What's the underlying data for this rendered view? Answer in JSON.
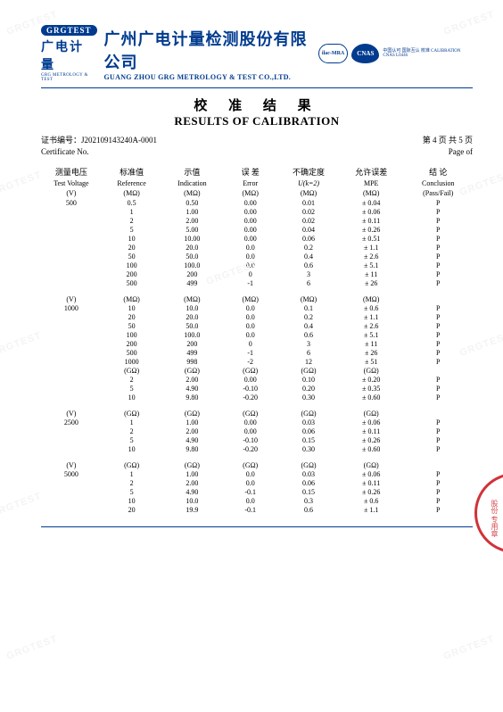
{
  "header": {
    "logo_badge": "GRGTEST",
    "logo_cn": "广电计量",
    "logo_sub": "GRG METROLOGY & TEST",
    "company_cn": "广州广电计量检测股份有限公司",
    "company_en": "GUANG ZHOU GRG METROLOGY & TEST CO.,LTD.",
    "ilac": "ilac-MRA",
    "cnas": "CNAS",
    "cnas_txt": "中国认可\n国际互认\n校准\nCALIBRATION\nCNAS L0446"
  },
  "title": {
    "cn": "校 准 结 果",
    "en": "RESULTS OF CALIBRATION"
  },
  "cert": {
    "label_cn": "证书编号：",
    "no": "J202109143240A-0001",
    "label_en": "Certificate No.",
    "page_cn": "第 4 页 共 5 页",
    "page_en": "Page    of"
  },
  "cols": {
    "c1_cn": "测量电压",
    "c1_en": "Test Voltage",
    "c1_u": "(V)",
    "c2_cn": "标准值",
    "c2_en": "Reference",
    "c2_u": "(MΩ)",
    "c3_cn": "示值",
    "c3_en": "Indication",
    "c3_u": "(MΩ)",
    "c4_cn": "误 差",
    "c4_en": "Error",
    "c4_u": "(MΩ)",
    "c5_cn": "不确定度",
    "c5_en": "U(k=2)",
    "c5_u": "(MΩ)",
    "c6_cn": "允许误差",
    "c6_en": "MPE",
    "c6_u": "(MΩ)",
    "c7_cn": "结  论",
    "c7_en": "Conclusion",
    "c7_u": "(Pass/Fail)"
  },
  "sec1": {
    "v": "500",
    "rows": [
      [
        "0.5",
        "0.50",
        "0.00",
        "0.01",
        "± 0.04",
        "P"
      ],
      [
        "1",
        "1.00",
        "0.00",
        "0.02",
        "± 0.06",
        "P"
      ],
      [
        "2",
        "2.00",
        "0.00",
        "0.02",
        "± 0.11",
        "P"
      ],
      [
        "5",
        "5.00",
        "0.00",
        "0.04",
        "± 0.26",
        "P"
      ],
      [
        "10",
        "10.00",
        "0.00",
        "0.06",
        "± 0.51",
        "P"
      ],
      [
        "20",
        "20.0",
        "0.0",
        "0.2",
        "± 1.1",
        "P"
      ],
      [
        "50",
        "50.0",
        "0.0",
        "0.4",
        "± 2.6",
        "P"
      ],
      [
        "100",
        "100.0",
        "0.0",
        "0.6",
        "± 5.1",
        "P"
      ],
      [
        "200",
        "200",
        "0",
        "3",
        "± 11",
        "P"
      ],
      [
        "500",
        "499",
        "-1",
        "6",
        "± 26",
        "P"
      ]
    ]
  },
  "sec2": {
    "v": "1000",
    "uhdr": [
      "(V)",
      "(MΩ)",
      "(MΩ)",
      "(MΩ)",
      "(MΩ)",
      "(MΩ)",
      ""
    ],
    "rows": [
      [
        "10",
        "10.0",
        "0.0",
        "0.1",
        "± 0.6",
        "P"
      ],
      [
        "20",
        "20.0",
        "0.0",
        "0.2",
        "± 1.1",
        "P"
      ],
      [
        "50",
        "50.0",
        "0.0",
        "0.4",
        "± 2.6",
        "P"
      ],
      [
        "100",
        "100.0",
        "0.0",
        "0.6",
        "± 5.1",
        "P"
      ],
      [
        "200",
        "200",
        "0",
        "3",
        "± 11",
        "P"
      ],
      [
        "500",
        "499",
        "-1",
        "6",
        "± 26",
        "P"
      ],
      [
        "1000",
        "998",
        "-2",
        "12",
        "± 51",
        "P"
      ]
    ],
    "uhdr2": [
      "",
      "(GΩ)",
      "(GΩ)",
      "(GΩ)",
      "(GΩ)",
      "(GΩ)",
      ""
    ],
    "rows2": [
      [
        "2",
        "2.00",
        "0.00",
        "0.10",
        "± 0.20",
        "P"
      ],
      [
        "5",
        "4.90",
        "-0.10",
        "0.20",
        "± 0.35",
        "P"
      ],
      [
        "10",
        "9.80",
        "-0.20",
        "0.30",
        "± 0.60",
        "P"
      ]
    ]
  },
  "sec3": {
    "v": "2500",
    "uhdr": [
      "(V)",
      "(GΩ)",
      "(GΩ)",
      "(GΩ)",
      "(GΩ)",
      "(GΩ)",
      ""
    ],
    "rows": [
      [
        "1",
        "1.00",
        "0.00",
        "0.03",
        "± 0.06",
        "P"
      ],
      [
        "2",
        "2.00",
        "0.00",
        "0.06",
        "± 0.11",
        "P"
      ],
      [
        "5",
        "4.90",
        "-0.10",
        "0.15",
        "± 0.26",
        "P"
      ],
      [
        "10",
        "9.80",
        "-0.20",
        "0.30",
        "± 0.60",
        "P"
      ]
    ]
  },
  "sec4": {
    "v": "5000",
    "uhdr": [
      "(V)",
      "(GΩ)",
      "(GΩ)",
      "(GΩ)",
      "(GΩ)",
      "(GΩ)",
      ""
    ],
    "rows": [
      [
        "1",
        "1.00",
        "0.0",
        "0.03",
        "± 0.06",
        "P"
      ],
      [
        "2",
        "2.00",
        "0.0",
        "0.06",
        "± 0.11",
        "P"
      ],
      [
        "5",
        "4.90",
        "-0.1",
        "0.15",
        "± 0.26",
        "P"
      ],
      [
        "10",
        "10.0",
        "0.0",
        "0.3",
        "± 0.6",
        "P"
      ],
      [
        "20",
        "19.9",
        "-0.1",
        "0.6",
        "± 1.1",
        "P"
      ]
    ]
  },
  "stamp_txt": "股份\n\n专用章"
}
